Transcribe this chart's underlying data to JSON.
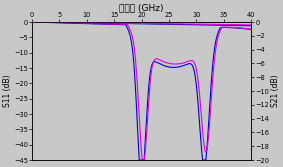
{
  "title": "周波数 (GHz)",
  "ylabel_left": "S11 (dB)",
  "ylabel_right": "S21 (dB)",
  "xlim": [
    0,
    40
  ],
  "ylim_left": [
    -45,
    0
  ],
  "ylim_right": [
    -20,
    0
  ],
  "xticks": [
    0,
    5,
    10,
    15,
    20,
    25,
    30,
    35,
    40
  ],
  "yticks_left": [
    0,
    -5,
    -10,
    -15,
    -20,
    -25,
    -30,
    -35,
    -40,
    -45
  ],
  "yticks_right": [
    0,
    -2,
    -4,
    -6,
    -8,
    -10,
    -12,
    -14,
    -16,
    -18,
    -20
  ],
  "bg_color": "#c8c8c8",
  "line_blue": "#0000dd",
  "line_magenta": "#dd00dd",
  "line_width": 0.8,
  "title_fontsize": 6.5,
  "axis_fontsize": 5.5,
  "tick_fontsize": 4.8
}
